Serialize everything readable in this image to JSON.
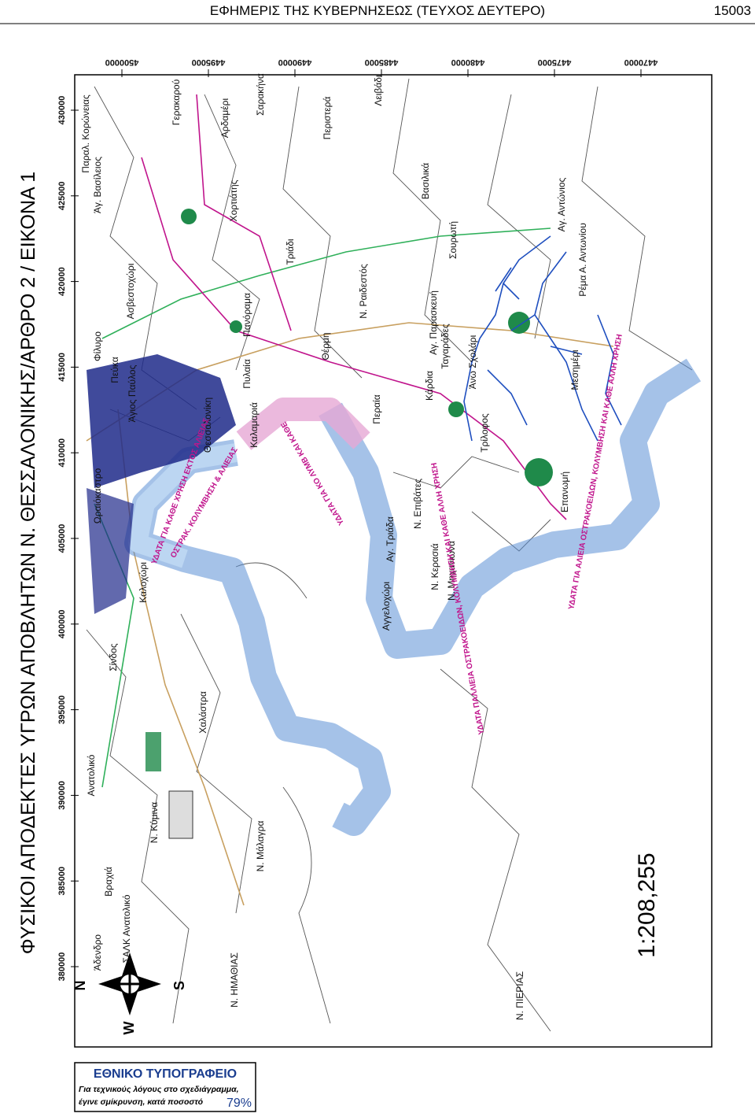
{
  "header": {
    "title": "ΕΦΗΜΕΡΙΣ ΤΗΣ ΚΥΒΕΡΝΗΣΕΩΣ (ΤΕΥΧΟΣ ΔΕΥΤΕΡΟ)",
    "page_number": "15003"
  },
  "map": {
    "title": "ΦΥΣΙΚΟΙ ΑΠΟΔΕΚΤΕΣ ΥΓΡΩΝ ΑΠΟΒΛΗΤΩΝ Ν. ΘΕΣΣΑΛΟΝΙΚΗΣ/ΑΡΘΡΟ 2 / ΕΙΚΟΝΑ 1",
    "scale": "1:208,255",
    "easting_ticks": [
      "430000",
      "425000",
      "420000",
      "415000",
      "410000",
      "405000",
      "400000",
      "395000",
      "390000",
      "385000",
      "380000"
    ],
    "northing_ticks": [
      "4500000",
      "4495000",
      "4490000",
      "4485000",
      "4480000",
      "4475000",
      "4470000"
    ],
    "places": [
      "Θεσσαλονίκη",
      "Καλοχώρι",
      "Σίνδος",
      "Χαλάστρα",
      "Ν. Κύμινα",
      "Ν. Μάλαγρα",
      "Βραχιά",
      "Ανατολικό",
      "Άδενδρο",
      "ΣΑΛΚ Ανατολικό",
      "Ν. ΗΜΑΘΙΑΣ",
      "Ν. ΠΙΕΡΙΑΣ",
      "Επανωμή",
      "Περαία",
      "Ν. Ραιδεστός",
      "Τριάδι",
      "Θέρμη",
      "Πυλαία",
      "Πανόραμα",
      "Καλαμαριά",
      "Χορτιάτης",
      "Ασβεστοχώρι",
      "Φίλυρο",
      "Πεύκα",
      "Άγ. Βασίλειος",
      "Παραλ. Κορώνειας",
      "Γερακαρού",
      "Αρδαμέρι",
      "Σαρακήνα",
      "Περιστερά",
      "Λειβάδι",
      "Βασιλικά",
      "Σουρωτή",
      "Αγ. Αντώνιος",
      "Αγ. Παρασκευή",
      "Ταγαράδες",
      "Κάρδια",
      "Άνω Σχολάρι",
      "Τρίλοφος",
      "Ν. Επιβάτες",
      "Αγ. Τριάδα",
      "Ν. Κερασιά",
      "Ν. Μηχανιώνα",
      "Αγγελοχώρι",
      "Μεσημέρι",
      "Ρέμα Α. Αντωνίου",
      "Ωραιόκαστρο",
      "Άγιος Παύλος"
    ],
    "water_labels": [
      "ΥΔΑΤΑ ΓΙΑ ΚΑΘΕ ΧΡΗΣΗ ΕΚΤΟΣ ΑΛΙΕΙΑΣ",
      "ΟΣΤΡΑΚ. ΚΟΛΥΜΒΗΣΗ & ΑΛΙΕΙΑΣ",
      "ΥΔΑΤΑ ΓΙΑ ΚΟ ΛΥΜΒ ΚΑΙ ΚΑΘΕ",
      "ΥΔΑΤΑ ΠΑΛΛΙΕΙΑ ΟΣΤΡΑΚΟΕΙΔΩΝ, ΚΟΛΥΜΒΗΣΗ ΚΑΙ ΚΑΘΕ ΑΛΛΗ ΧΡΗΣΗ",
      "ΥΔΑΤΑ ΓΙΑ ΑΛΙΕΙΑ ΟΣΤΡΑΚΟΕΙΔΩΝ, ΚΟΛΥΜΒΗΣΗ ΚΑΙ ΚΑΘΕ ΑΛΛΗ ΧΡΗΣΗ"
    ],
    "compass": {
      "north": "N",
      "south": "S",
      "west": "W"
    }
  },
  "footer": {
    "publisher": "ΕΘΝΙΚΟ ΤΥΠΟΓΡΑΦΕΙΟ",
    "note_lines": [
      "Για τεχνικούς λόγους στο σχεδιάγραμμα,",
      "έγινε σμίκρυνση, κατά ποσοστό"
    ],
    "reduction": "79%"
  }
}
